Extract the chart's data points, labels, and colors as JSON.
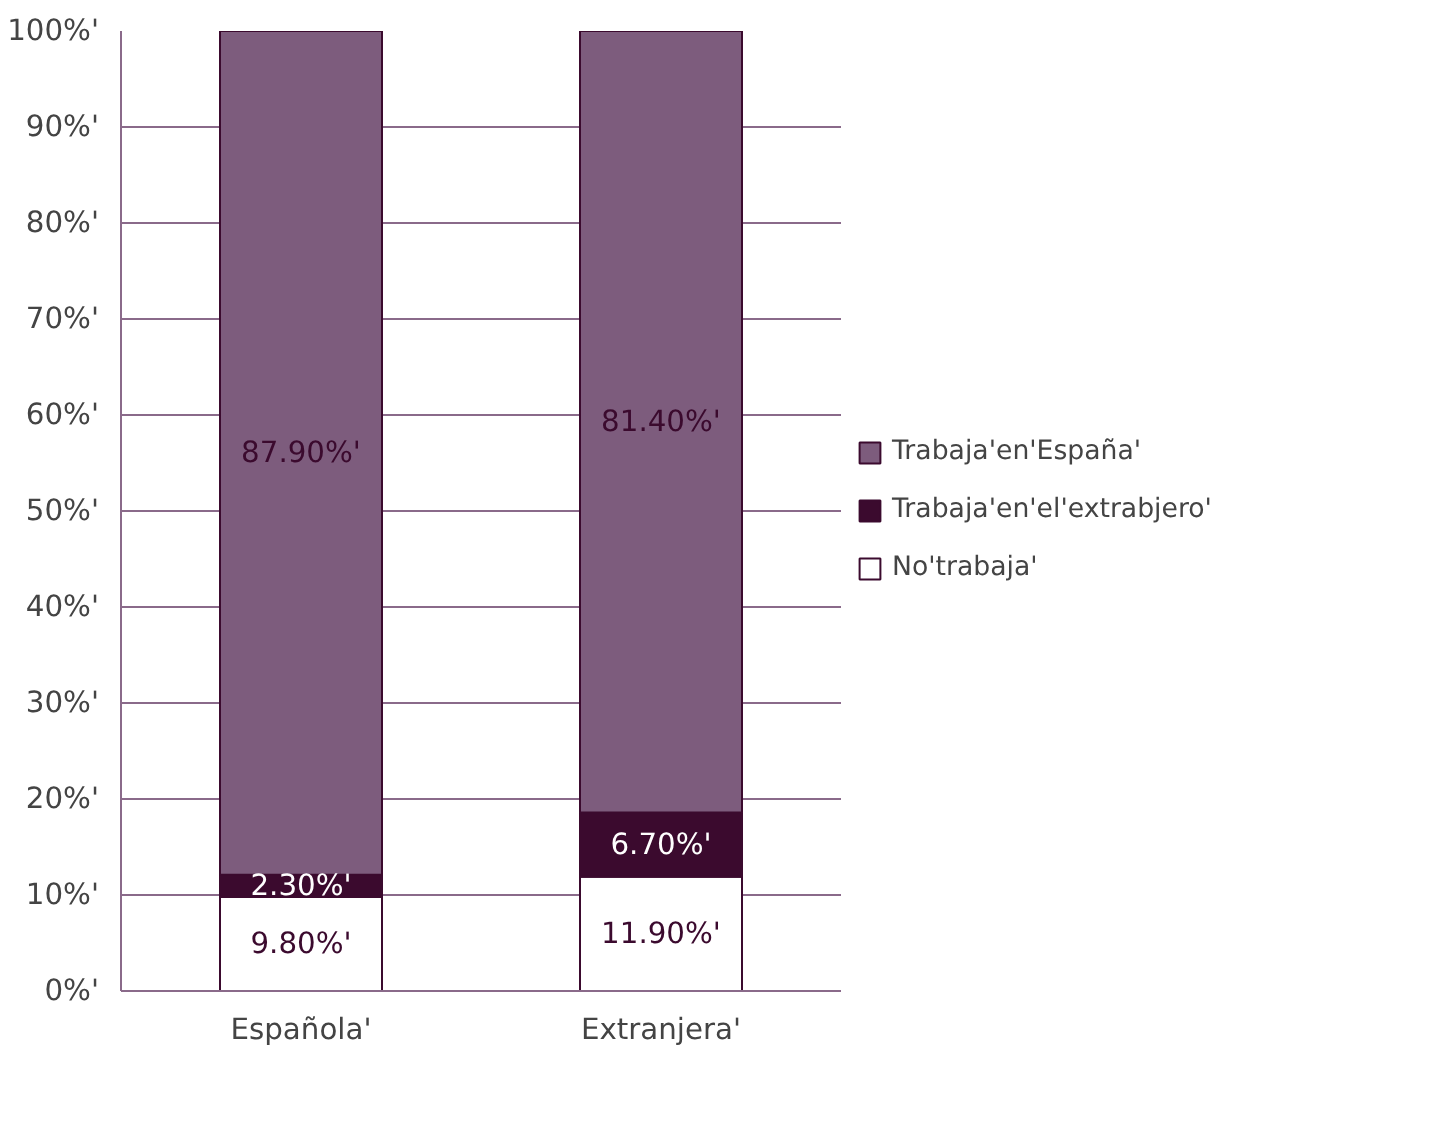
{
  "chart_data": {
    "type": "bar",
    "stacked": true,
    "categories": [
      "Española'",
      "Extranjera'"
    ],
    "series": [
      {
        "name": "No'trabaja'",
        "color": "#ffffff",
        "values": [
          9.8,
          11.9
        ],
        "value_labels": [
          "9.80%'",
          "11.90%'"
        ]
      },
      {
        "name": "Trabaja'en'el'extrabjero'",
        "color": "#3b0a2e",
        "values": [
          2.3,
          6.7
        ],
        "value_labels": [
          "2.30%'",
          "6.70%'"
        ]
      },
      {
        "name": "Trabaja'en'España'",
        "color": "#7d5c7d",
        "values": [
          87.9,
          81.4
        ],
        "value_labels": [
          "87.90%'",
          "81.40%'"
        ]
      }
    ],
    "ylim": [
      0,
      100
    ],
    "yticks": [
      {
        "value": 0,
        "label": "0%'"
      },
      {
        "value": 10,
        "label": "10%'"
      },
      {
        "value": 20,
        "label": "20%'"
      },
      {
        "value": 30,
        "label": "30%'"
      },
      {
        "value": 40,
        "label": "40%'"
      },
      {
        "value": 50,
        "label": "50%'"
      },
      {
        "value": 60,
        "label": "60%'"
      },
      {
        "value": 70,
        "label": "70%'"
      },
      {
        "value": 80,
        "label": "80%'"
      },
      {
        "value": 90,
        "label": "90%'"
      },
      {
        "value": 100,
        "label": "100%'"
      }
    ],
    "grid": "y",
    "legend": "right"
  }
}
